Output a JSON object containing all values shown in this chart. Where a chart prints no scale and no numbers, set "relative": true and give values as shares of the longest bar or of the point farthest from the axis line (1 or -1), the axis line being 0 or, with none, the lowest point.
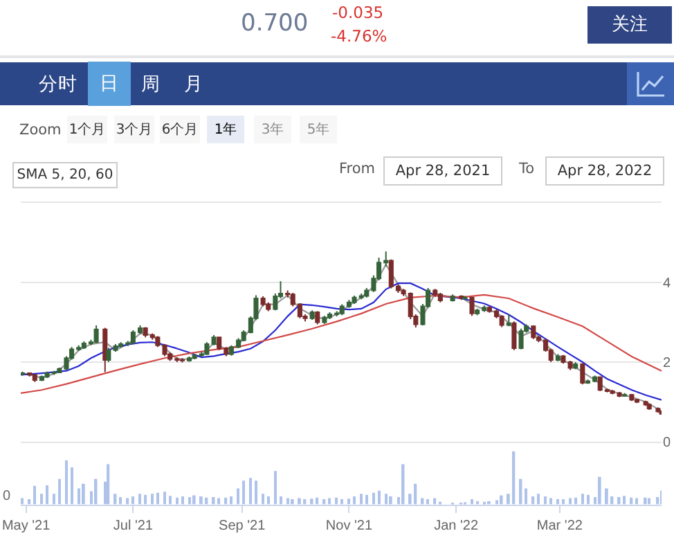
{
  "chart_data": [
    {
      "type": "other",
      "annotations": [
        "0.700",
        "-0.035",
        "-4.76%",
        "关注",
        "分时",
        "日",
        "周",
        "月",
        "Zoom",
        "1个月",
        "3个月",
        "6个月",
        "1年",
        "3年",
        "5年",
        "From",
        "Apr 28, 2021",
        "To",
        "Apr 28, 2022"
      ]
    },
    {
      "type": "candlestick",
      "annotations": [
        "SMA 5, 20, 60"
      ],
      "x": [
        "2021-04-29",
        "2021-05-03",
        "2021-05-06",
        "2021-05-10",
        "2021-05-13",
        "2021-05-17",
        "2021-05-20",
        "2021-05-24",
        "2021-05-27",
        "2021-05-31",
        "2021-06-03",
        "2021-06-07",
        "2021-06-10",
        "2021-06-15",
        "2021-06-17",
        "2021-06-21",
        "2021-06-24",
        "2021-06-28",
        "2021-07-01",
        "2021-07-05",
        "2021-07-08",
        "2021-07-12",
        "2021-07-15",
        "2021-07-19",
        "2021-07-22",
        "2021-07-26",
        "2021-07-29",
        "2021-08-02",
        "2021-08-05",
        "2021-08-09",
        "2021-08-12",
        "2021-08-16",
        "2021-08-19",
        "2021-08-23",
        "2021-08-26",
        "2021-08-30",
        "2021-09-02",
        "2021-09-06",
        "2021-09-09",
        "2021-09-13",
        "2021-09-16",
        "2021-09-20",
        "2021-09-23",
        "2021-09-27",
        "2021-09-30",
        "2021-10-04",
        "2021-10-07",
        "2021-10-11",
        "2021-10-14",
        "2021-10-18",
        "2021-10-21",
        "2021-10-25",
        "2021-10-28",
        "2021-11-01",
        "2021-11-04",
        "2021-11-08",
        "2021-11-11",
        "2021-11-15",
        "2021-11-18",
        "2021-11-22",
        "2021-11-25",
        "2021-11-29",
        "2021-12-02",
        "2021-12-06",
        "2021-12-09",
        "2021-12-13",
        "2021-12-16",
        "2021-12-20",
        "2021-12-23",
        "2021-12-30",
        "2022-01-04",
        "2022-01-06",
        "2022-01-10",
        "2022-01-13",
        "2022-01-17",
        "2022-01-20",
        "2022-01-24",
        "2022-01-27",
        "2022-01-31",
        "2022-02-03",
        "2022-02-07",
        "2022-02-10",
        "2022-02-14",
        "2022-02-17",
        "2022-02-21",
        "2022-02-24",
        "2022-02-28",
        "2022-03-03",
        "2022-03-07",
        "2022-03-10",
        "2022-03-14",
        "2022-03-17",
        "2022-03-21",
        "2022-03-24",
        "2022-03-28",
        "2022-03-31",
        "2022-04-04",
        "2022-04-07",
        "2022-04-11",
        "2022-04-14",
        "2022-04-19",
        "2022-04-21",
        "2022-04-26",
        "2022-04-28"
      ],
      "ohlc": [
        [
          1.7,
          1.76,
          1.66,
          1.72
        ],
        [
          1.72,
          1.74,
          1.64,
          1.68
        ],
        [
          1.68,
          1.7,
          1.5,
          1.55
        ],
        [
          1.55,
          1.66,
          1.52,
          1.63
        ],
        [
          1.63,
          1.76,
          1.6,
          1.72
        ],
        [
          1.72,
          1.78,
          1.68,
          1.74
        ],
        [
          1.74,
          1.86,
          1.72,
          1.83
        ],
        [
          1.83,
          2.15,
          1.8,
          2.1
        ],
        [
          2.1,
          2.38,
          2.06,
          2.32
        ],
        [
          2.32,
          2.42,
          2.28,
          2.36
        ],
        [
          2.36,
          2.52,
          2.33,
          2.47
        ],
        [
          2.47,
          2.56,
          2.42,
          2.5
        ],
        [
          2.5,
          2.92,
          2.48,
          2.82
        ],
        [
          2.82,
          2.86,
          1.75,
          2.05
        ],
        [
          2.05,
          2.36,
          2.0,
          2.3
        ],
        [
          2.3,
          2.45,
          2.26,
          2.4
        ],
        [
          2.4,
          2.5,
          2.36,
          2.45
        ],
        [
          2.45,
          2.53,
          2.4,
          2.48
        ],
        [
          2.48,
          2.8,
          2.46,
          2.75
        ],
        [
          2.75,
          2.92,
          2.7,
          2.85
        ],
        [
          2.85,
          2.88,
          2.62,
          2.68
        ],
        [
          2.68,
          2.72,
          2.56,
          2.62
        ],
        [
          2.62,
          2.65,
          2.38,
          2.42
        ],
        [
          2.42,
          2.45,
          2.15,
          2.2
        ],
        [
          2.2,
          2.24,
          2.03,
          2.08
        ],
        [
          2.08,
          2.12,
          2.0,
          2.05
        ],
        [
          2.05,
          2.1,
          1.99,
          2.04
        ],
        [
          2.04,
          2.14,
          2.01,
          2.1
        ],
        [
          2.1,
          2.21,
          2.07,
          2.17
        ],
        [
          2.17,
          2.26,
          2.14,
          2.2
        ],
        [
          2.2,
          2.5,
          2.18,
          2.45
        ],
        [
          2.45,
          2.68,
          2.42,
          2.62
        ],
        [
          2.62,
          2.64,
          2.3,
          2.35
        ],
        [
          2.35,
          2.38,
          2.15,
          2.2
        ],
        [
          2.2,
          2.42,
          2.16,
          2.38
        ],
        [
          2.38,
          2.6,
          2.35,
          2.55
        ],
        [
          2.55,
          2.8,
          2.52,
          2.75
        ],
        [
          2.75,
          3.15,
          2.72,
          3.1
        ],
        [
          3.1,
          3.68,
          3.05,
          3.6
        ],
        [
          3.6,
          3.65,
          3.4,
          3.45
        ],
        [
          3.45,
          3.5,
          3.28,
          3.33
        ],
        [
          3.33,
          3.72,
          3.3,
          3.65
        ],
        [
          3.65,
          4.03,
          3.6,
          3.72
        ],
        [
          3.72,
          3.8,
          3.62,
          3.7
        ],
        [
          3.7,
          3.74,
          3.4,
          3.45
        ],
        [
          3.45,
          3.48,
          3.1,
          3.15
        ],
        [
          3.15,
          3.2,
          3.02,
          3.1
        ],
        [
          3.1,
          3.3,
          3.06,
          3.25
        ],
        [
          3.25,
          3.28,
          2.95,
          3.0
        ],
        [
          3.0,
          3.16,
          2.96,
          3.12
        ],
        [
          3.12,
          3.25,
          3.08,
          3.2
        ],
        [
          3.2,
          3.28,
          3.15,
          3.22
        ],
        [
          3.22,
          3.45,
          3.18,
          3.4
        ],
        [
          3.4,
          3.56,
          3.36,
          3.5
        ],
        [
          3.5,
          3.67,
          3.46,
          3.62
        ],
        [
          3.62,
          3.72,
          3.58,
          3.66
        ],
        [
          3.66,
          3.86,
          3.62,
          3.8
        ],
        [
          3.8,
          4.18,
          3.76,
          4.1
        ],
        [
          4.1,
          4.62,
          4.05,
          4.5
        ],
        [
          4.5,
          4.78,
          4.4,
          4.55
        ],
        [
          4.55,
          4.58,
          3.85,
          3.9
        ],
        [
          3.9,
          3.95,
          3.74,
          3.8
        ],
        [
          3.8,
          3.84,
          3.66,
          3.72
        ],
        [
          3.72,
          3.75,
          3.08,
          3.15
        ],
        [
          3.15,
          3.2,
          2.87,
          2.95
        ],
        [
          2.95,
          3.46,
          2.92,
          3.4
        ],
        [
          3.4,
          3.86,
          3.36,
          3.8
        ],
        [
          3.8,
          3.84,
          3.64,
          3.7
        ],
        [
          3.7,
          3.74,
          3.5,
          3.55
        ],
        [
          3.55,
          3.7,
          3.52,
          3.65
        ],
        [
          3.65,
          3.68,
          3.56,
          3.6
        ],
        [
          3.6,
          3.66,
          3.56,
          3.62
        ],
        [
          3.62,
          3.64,
          3.16,
          3.22
        ],
        [
          3.22,
          3.34,
          3.18,
          3.3
        ],
        [
          3.3,
          3.42,
          3.26,
          3.37
        ],
        [
          3.37,
          3.4,
          3.24,
          3.28
        ],
        [
          3.28,
          3.32,
          3.1,
          3.15
        ],
        [
          3.15,
          3.18,
          2.88,
          2.93
        ],
        [
          2.93,
          3.2,
          2.9,
          2.98
        ],
        [
          2.98,
          3.02,
          2.3,
          2.35
        ],
        [
          2.35,
          2.84,
          2.32,
          2.78
        ],
        [
          2.78,
          2.95,
          2.74,
          2.9
        ],
        [
          2.9,
          2.92,
          2.58,
          2.62
        ],
        [
          2.62,
          2.66,
          2.5,
          2.55
        ],
        [
          2.55,
          2.58,
          2.26,
          2.3
        ],
        [
          2.3,
          2.34,
          2.0,
          2.05
        ],
        [
          2.05,
          2.2,
          2.02,
          2.15
        ],
        [
          2.15,
          2.18,
          1.96,
          2.0
        ],
        [
          2.0,
          2.03,
          1.8,
          1.85
        ],
        [
          1.85,
          2.0,
          1.82,
          1.95
        ],
        [
          1.95,
          1.97,
          1.44,
          1.48
        ],
        [
          1.48,
          1.56,
          1.45,
          1.52
        ],
        [
          1.52,
          1.66,
          1.49,
          1.62
        ],
        [
          1.62,
          1.64,
          1.27,
          1.3
        ],
        [
          1.3,
          1.33,
          1.24,
          1.27
        ],
        [
          1.27,
          1.3,
          1.19,
          1.22
        ],
        [
          1.22,
          1.25,
          1.12,
          1.15
        ],
        [
          1.15,
          1.22,
          1.13,
          1.18
        ],
        [
          1.18,
          1.2,
          1.02,
          1.05
        ],
        [
          1.05,
          1.08,
          0.97,
          1.0
        ],
        [
          1.0,
          1.03,
          0.9,
          0.93
        ],
        [
          0.93,
          0.96,
          0.8,
          0.83
        ],
        [
          0.83,
          0.86,
          0.73,
          0.76
        ],
        [
          0.76,
          0.78,
          0.68,
          0.7
        ]
      ],
      "colors": [
        "#36633a",
        "#7a2b2b",
        "#7a2b2b",
        "#36633a",
        "#36633a",
        "#36633a",
        "#36633a",
        "#36633a",
        "#36633a",
        "#36633a",
        "#36633a",
        "#36633a",
        "#36633a",
        "#7a2b2b",
        "#36633a",
        "#36633a",
        "#36633a",
        "#36633a",
        "#36633a",
        "#36633a",
        "#7a2b2b",
        "#7a2b2b",
        "#7a2b2b",
        "#7a2b2b",
        "#7a2b2b",
        "#7a2b2b",
        "#7a2b2b",
        "#36633a",
        "#36633a",
        "#36633a",
        "#36633a",
        "#36633a",
        "#7a2b2b",
        "#7a2b2b",
        "#36633a",
        "#36633a",
        "#36633a",
        "#36633a",
        "#36633a",
        "#7a2b2b",
        "#7a2b2b",
        "#36633a",
        "#36633a",
        "#7a2b2b",
        "#7a2b2b",
        "#7a2b2b",
        "#7a2b2b",
        "#36633a",
        "#7a2b2b",
        "#36633a",
        "#36633a",
        "#36633a",
        "#36633a",
        "#36633a",
        "#36633a",
        "#36633a",
        "#36633a",
        "#36633a",
        "#36633a",
        "#36633a",
        "#7a2b2b",
        "#7a2b2b",
        "#7a2b2b",
        "#7a2b2b",
        "#7a2b2b",
        "#36633a",
        "#36633a",
        "#7a2b2b",
        "#7a2b2b",
        "#36633a",
        "#7a2b2b",
        "#36633a",
        "#7a2b2b",
        "#36633a",
        "#36633a",
        "#7a2b2b",
        "#7a2b2b",
        "#7a2b2b",
        "#36633a",
        "#7a2b2b",
        "#36633a",
        "#36633a",
        "#7a2b2b",
        "#7a2b2b",
        "#7a2b2b",
        "#7a2b2b",
        "#36633a",
        "#7a2b2b",
        "#7a2b2b",
        "#36633a",
        "#7a2b2b",
        "#36633a",
        "#36633a",
        "#7a2b2b",
        "#7a2b2b",
        "#7a2b2b",
        "#7a2b2b",
        "#36633a",
        "#7a2b2b",
        "#7a2b2b",
        "#7a2b2b",
        "#7a2b2b",
        "#7a2b2b",
        "#7a2b2b"
      ],
      "series": [
        {
          "type": "line",
          "color": "#9a9a9a",
          "x": [
            "2021-04-29",
            "2021-05-03",
            "2021-05-10",
            "2021-05-17",
            "2021-05-24",
            "2021-05-31",
            "2021-06-07",
            "2021-06-15",
            "2021-06-21",
            "2021-06-28",
            "2021-07-05",
            "2021-07-12",
            "2021-07-19",
            "2021-07-26",
            "2021-08-02",
            "2021-08-09",
            "2021-08-16",
            "2021-08-23",
            "2021-08-30",
            "2021-09-06",
            "2021-09-13",
            "2021-09-20",
            "2021-09-27",
            "2021-10-04",
            "2021-10-11",
            "2021-10-18",
            "2021-10-25",
            "2021-11-01",
            "2021-11-08",
            "2021-11-15",
            "2021-11-22",
            "2021-11-29",
            "2021-12-06",
            "2021-12-13",
            "2021-12-20",
            "2021-12-30",
            "2022-01-04",
            "2022-01-10",
            "2022-01-17",
            "2022-01-24",
            "2022-01-31",
            "2022-02-07",
            "2022-02-14",
            "2022-02-21",
            "2022-02-28",
            "2022-03-07",
            "2022-03-14",
            "2022-03-21",
            "2022-03-28",
            "2022-04-04",
            "2022-04-11",
            "2022-04-19",
            "2022-04-26",
            "2022-04-28"
          ],
          "values": [
            1.71,
            1.69,
            1.6,
            1.71,
            1.95,
            2.3,
            2.45,
            2.5,
            2.3,
            2.45,
            2.72,
            2.68,
            2.35,
            2.08,
            2.07,
            2.17,
            2.48,
            2.32,
            2.42,
            2.85,
            3.45,
            3.45,
            3.68,
            3.35,
            3.17,
            3.08,
            3.2,
            3.42,
            3.62,
            3.9,
            4.45,
            3.95,
            3.5,
            3.15,
            3.72,
            3.62,
            3.62,
            3.45,
            3.32,
            3.25,
            2.98,
            2.65,
            2.78,
            2.45,
            2.12,
            1.95,
            1.75,
            1.55,
            1.32,
            1.2,
            1.12,
            1.0,
            0.82,
            0.76
          ]
        },
        {
          "type": "line",
          "color": "#2a2ad2",
          "x": [
            "2021-04-28",
            "2021-05-10",
            "2021-05-17",
            "2021-05-24",
            "2021-05-31",
            "2021-06-07",
            "2021-06-15",
            "2021-06-21",
            "2021-06-28",
            "2021-07-05",
            "2021-07-12",
            "2021-07-19",
            "2021-07-26",
            "2021-08-02",
            "2021-08-09",
            "2021-08-16",
            "2021-08-23",
            "2021-08-30",
            "2021-09-06",
            "2021-09-13",
            "2021-09-20",
            "2021-09-27",
            "2021-10-04",
            "2021-10-11",
            "2021-10-18",
            "2021-10-25",
            "2021-11-01",
            "2021-11-08",
            "2021-11-15",
            "2021-11-22",
            "2021-11-29",
            "2021-12-06",
            "2021-12-13",
            "2021-12-20",
            "2022-01-04",
            "2022-01-10",
            "2022-01-17",
            "2022-01-24",
            "2022-01-31",
            "2022-02-07",
            "2022-02-14",
            "2022-02-21",
            "2022-02-28",
            "2022-03-07",
            "2022-03-14",
            "2022-03-21",
            "2022-03-28",
            "2022-04-04",
            "2022-04-11",
            "2022-04-19",
            "2022-04-28"
          ],
          "values": [
            1.68,
            1.72,
            1.75,
            1.78,
            1.9,
            2.1,
            2.27,
            2.37,
            2.44,
            2.49,
            2.5,
            2.43,
            2.34,
            2.24,
            2.12,
            2.15,
            2.21,
            2.26,
            2.34,
            2.52,
            2.8,
            3.15,
            3.45,
            3.43,
            3.39,
            3.34,
            3.32,
            3.34,
            3.5,
            3.83,
            3.98,
            3.98,
            3.84,
            3.67,
            3.6,
            3.54,
            3.47,
            3.34,
            3.19,
            3.0,
            2.78,
            2.58,
            2.38,
            2.19,
            2.0,
            1.78,
            1.58,
            1.44,
            1.3,
            1.17,
            1.05
          ]
        },
        {
          "type": "line",
          "color": "#d24a48",
          "x": [
            "2021-04-28",
            "2021-05-10",
            "2021-05-24",
            "2021-06-07",
            "2021-06-21",
            "2021-07-05",
            "2021-07-19",
            "2021-08-02",
            "2021-08-16",
            "2021-08-30",
            "2021-09-13",
            "2021-09-27",
            "2021-10-11",
            "2021-10-25",
            "2021-11-08",
            "2021-11-22",
            "2021-12-06",
            "2021-12-20",
            "2022-01-04",
            "2022-01-17",
            "2022-01-31",
            "2022-02-14",
            "2022-02-28",
            "2022-03-14",
            "2022-03-28",
            "2022-04-11",
            "2022-04-28"
          ],
          "values": [
            1.22,
            1.3,
            1.45,
            1.62,
            1.79,
            1.95,
            2.1,
            2.22,
            2.31,
            2.38,
            2.53,
            2.68,
            2.84,
            3.02,
            3.22,
            3.46,
            3.62,
            3.67,
            3.63,
            3.69,
            3.6,
            3.35,
            3.13,
            2.9,
            2.52,
            2.14,
            1.78
          ]
        }
      ],
      "xlim": [
        "2021-04-28",
        "2022-04-28"
      ],
      "ylim": [
        0,
        6
      ],
      "yticks": [
        0,
        2,
        4,
        {
          "value": 6,
          "label": null
        }
      ],
      "grid": "y",
      "tick_labels": "y"
    },
    {
      "type": "bar",
      "relative": true,
      "color": "#aec2ea",
      "annotations": [
        "0"
      ],
      "x": [
        "2021-04-29",
        "2021-05-03",
        "2021-05-06",
        "2021-05-10",
        "2021-05-13",
        "2021-05-17",
        "2021-05-20",
        "2021-05-24",
        "2021-05-27",
        "2021-05-31",
        "2021-06-03",
        "2021-06-07",
        "2021-06-10",
        "2021-06-15",
        "2021-06-17",
        "2021-06-21",
        "2021-06-24",
        "2021-06-28",
        "2021-07-01",
        "2021-07-05",
        "2021-07-08",
        "2021-07-12",
        "2021-07-15",
        "2021-07-19",
        "2021-07-22",
        "2021-07-26",
        "2021-07-29",
        "2021-08-02",
        "2021-08-05",
        "2021-08-09",
        "2021-08-12",
        "2021-08-16",
        "2021-08-19",
        "2021-08-23",
        "2021-08-26",
        "2021-08-30",
        "2021-09-02",
        "2021-09-06",
        "2021-09-09",
        "2021-09-13",
        "2021-09-16",
        "2021-09-20",
        "2021-09-23",
        "2021-09-27",
        "2021-09-30",
        "2021-10-04",
        "2021-10-07",
        "2021-10-11",
        "2021-10-14",
        "2021-10-18",
        "2021-10-21",
        "2021-10-25",
        "2021-10-28",
        "2021-11-01",
        "2021-11-04",
        "2021-11-08",
        "2021-11-11",
        "2021-11-15",
        "2021-11-18",
        "2021-11-22",
        "2021-11-25",
        "2021-11-29",
        "2021-12-02",
        "2021-12-06",
        "2021-12-09",
        "2021-12-13",
        "2021-12-16",
        "2021-12-20",
        "2021-12-23",
        "2021-12-30",
        "2022-01-04",
        "2022-01-06",
        "2022-01-10",
        "2022-01-13",
        "2022-01-17",
        "2022-01-20",
        "2022-01-24",
        "2022-01-27",
        "2022-01-31",
        "2022-02-03",
        "2022-02-07",
        "2022-02-10",
        "2022-02-14",
        "2022-02-17",
        "2022-02-21",
        "2022-02-24",
        "2022-02-28",
        "2022-03-03",
        "2022-03-07",
        "2022-03-10",
        "2022-03-14",
        "2022-03-17",
        "2022-03-21",
        "2022-03-24",
        "2022-03-28",
        "2022-03-31",
        "2022-04-04",
        "2022-04-07",
        "2022-04-11",
        "2022-04-14",
        "2022-04-19",
        "2022-04-21",
        "2022-04-26",
        "2022-04-28"
      ],
      "values": [
        0.12,
        0.1,
        0.35,
        0.2,
        0.36,
        0.2,
        0.48,
        0.83,
        0.7,
        0.3,
        0.39,
        0.25,
        0.48,
        0.43,
        0.76,
        0.2,
        0.14,
        0.12,
        0.15,
        0.2,
        0.18,
        0.2,
        0.22,
        0.24,
        0.16,
        0.13,
        0.15,
        0.14,
        0.17,
        0.15,
        0.13,
        0.14,
        0.12,
        0.13,
        0.15,
        0.3,
        0.45,
        0.5,
        0.45,
        0.2,
        0.15,
        0.63,
        0.15,
        0.12,
        0.1,
        0.12,
        0.1,
        0.11,
        0.13,
        0.1,
        0.12,
        0.13,
        0.1,
        0.11,
        0.15,
        0.2,
        0.18,
        0.22,
        0.26,
        0.2,
        0.15,
        0.14,
        0.76,
        0.2,
        0.39,
        0.12,
        0.1,
        0.12,
        0.05,
        0.03,
        0.03,
        0.04,
        0.1,
        0.06,
        0.05,
        0.06,
        0.08,
        0.17,
        0.2,
        1.0,
        0.48,
        0.3,
        0.15,
        0.2,
        0.15,
        0.12,
        0.1,
        0.1,
        0.12,
        0.13,
        0.2,
        0.18,
        0.14,
        0.52,
        0.3,
        0.15,
        0.14,
        0.16,
        0.13,
        0.12,
        0.13,
        0.12,
        0.14,
        0.26
      ],
      "xlim": [
        "2021-04-28",
        "2022-04-28"
      ],
      "xticks": [
        {
          "value": "2021-05-01",
          "label": "May '21"
        },
        {
          "value": "2021-07-01",
          "label": "Jul '21"
        },
        {
          "value": "2021-09-01",
          "label": "Sep '21"
        },
        {
          "value": "2021-11-01",
          "label": "Nov '21"
        },
        {
          "value": "2022-01-01",
          "label": "Jan '22"
        },
        {
          "value": "2022-03-01",
          "label": "Mar '22"
        }
      ],
      "tick_labels": "x"
    }
  ]
}
